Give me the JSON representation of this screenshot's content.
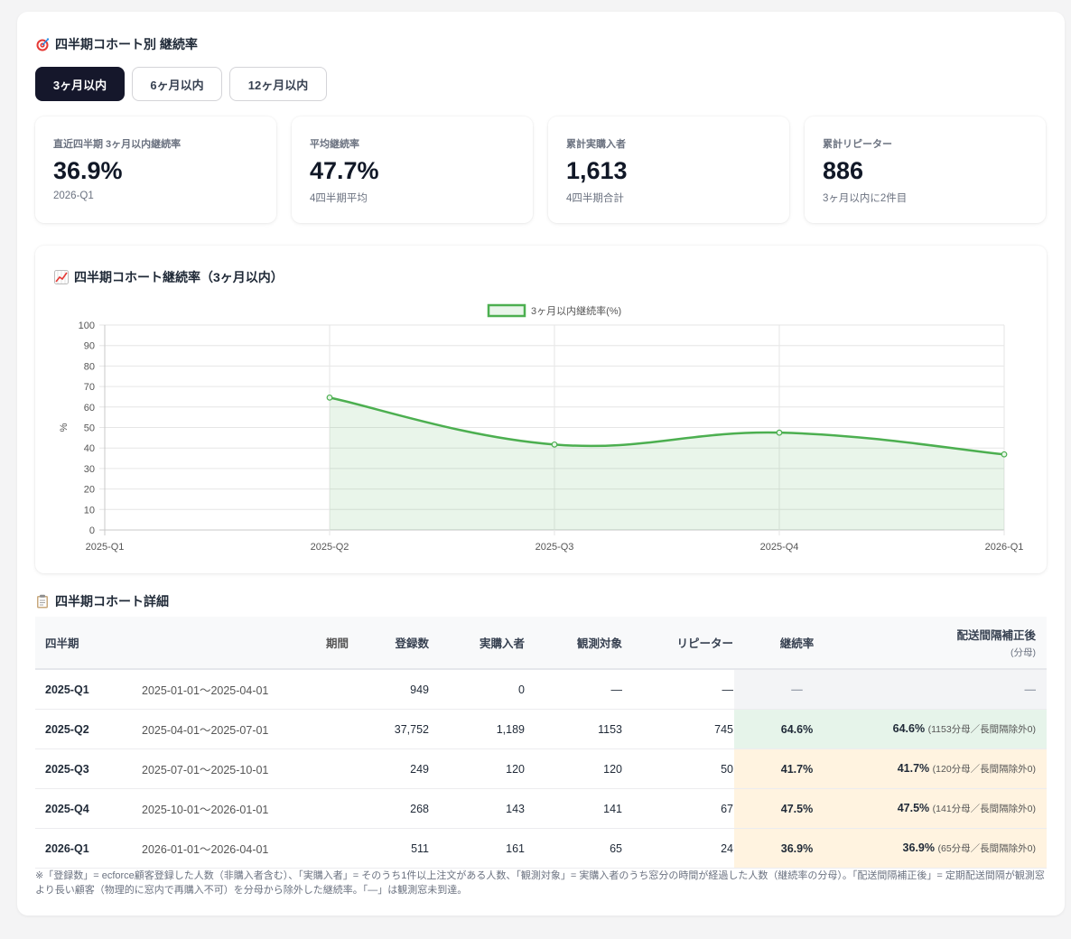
{
  "header": {
    "title": "四半期コホート別 継続率"
  },
  "tabs": [
    {
      "label": "3ヶ月以内",
      "active": true
    },
    {
      "label": "6ヶ月以内",
      "active": false
    },
    {
      "label": "12ヶ月以内",
      "active": false
    }
  ],
  "kpis": [
    {
      "label": "直近四半期 3ヶ月以内継続率",
      "value": "36.9%",
      "sub": "2026-Q1"
    },
    {
      "label": "平均継続率",
      "value": "47.7%",
      "sub": "4四半期平均"
    },
    {
      "label": "累計実購入者",
      "value": "1,613",
      "sub": "4四半期合計"
    },
    {
      "label": "累計リピーター",
      "value": "886",
      "sub": "3ヶ月以内に2件目"
    }
  ],
  "chart_section": {
    "title": "四半期コホート継続率（3ヶ月以内）"
  },
  "chart_data": {
    "type": "line",
    "categories": [
      "2025-Q1",
      "2025-Q2",
      "2025-Q3",
      "2025-Q4",
      "2026-Q1"
    ],
    "series": [
      {
        "name": "3ヶ月以内継続率(%)",
        "values": [
          null,
          64.6,
          41.7,
          47.5,
          36.9
        ],
        "color": "#4caf50"
      }
    ],
    "ylabel": "%",
    "ylim": [
      0,
      100
    ],
    "yticks": [
      0,
      10,
      20,
      30,
      40,
      50,
      60,
      70,
      80,
      90,
      100
    ],
    "legend": "top-center",
    "grid": true,
    "fill": true
  },
  "table_section": {
    "title": "四半期コホート詳細"
  },
  "table": {
    "headers": {
      "quarter": "四半期",
      "period": "期間",
      "registered": "登録数",
      "buyers": "実購入者",
      "observed": "観測対象",
      "repeaters": "リピーター",
      "rate": "継続率",
      "adjusted": "配送間隔補正後",
      "adjusted_sub": "(分母)"
    },
    "rows": [
      {
        "quarter": "2025-Q1",
        "period": "2025-01-01〜2025-04-01",
        "registered": "949",
        "buyers": "0",
        "observed": "—",
        "repeaters": "—",
        "rate": "—",
        "adjusted": "—",
        "adjusted_note": "",
        "tone": "gray"
      },
      {
        "quarter": "2025-Q2",
        "period": "2025-04-01〜2025-07-01",
        "registered": "37,752",
        "buyers": "1,189",
        "observed": "1153",
        "repeaters": "745",
        "rate": "64.6%",
        "adjusted": "64.6%",
        "adjusted_note": "(1153分母／長間隔除外0)",
        "tone": "green"
      },
      {
        "quarter": "2025-Q3",
        "period": "2025-07-01〜2025-10-01",
        "registered": "249",
        "buyers": "120",
        "observed": "120",
        "repeaters": "50",
        "rate": "41.7%",
        "adjusted": "41.7%",
        "adjusted_note": "(120分母／長間隔除外0)",
        "tone": "cream"
      },
      {
        "quarter": "2025-Q4",
        "period": "2025-10-01〜2026-01-01",
        "registered": "268",
        "buyers": "143",
        "observed": "141",
        "repeaters": "67",
        "rate": "47.5%",
        "adjusted": "47.5%",
        "adjusted_note": "(141分母／長間隔除外0)",
        "tone": "cream"
      },
      {
        "quarter": "2026-Q1",
        "period": "2026-01-01〜2026-04-01",
        "registered": "511",
        "buyers": "161",
        "observed": "65",
        "repeaters": "24",
        "rate": "36.9%",
        "adjusted": "36.9%",
        "adjusted_note": "(65分母／長間隔除外0)",
        "tone": "cream"
      }
    ]
  },
  "footnote": "※「登録数」= ecforce顧客登録した人数（非購入者含む）、「実購入者」= そのうち1件以上注文がある人数、「観測対象」= 実購入者のうち窓分の時間が経過した人数（継続率の分母）。「配送間隔補正後」= 定期配送間隔が観測窓より長い顧客（物理的に窓内で再購入不可）を分母から除外した継続率。「—」は観測窓未到達。"
}
